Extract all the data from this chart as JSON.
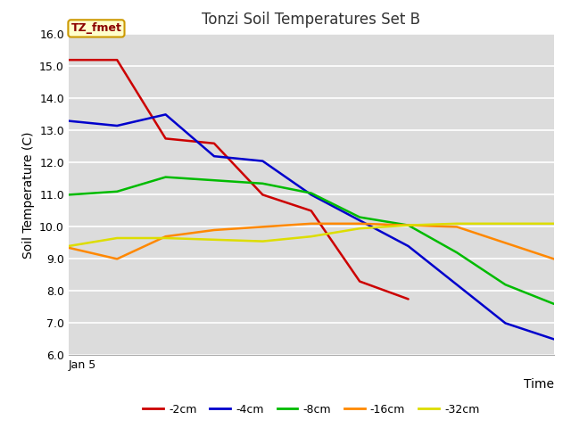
{
  "title": "Tonzi Soil Temperatures Set B",
  "xlabel": "Time",
  "ylabel": "Soil Temperature (C)",
  "ylim": [
    6.0,
    16.0
  ],
  "yticks": [
    6.0,
    7.0,
    8.0,
    9.0,
    10.0,
    11.0,
    12.0,
    13.0,
    14.0,
    15.0,
    16.0
  ],
  "x_label_text": "Jan 5",
  "annotation_label": "TZ_fmet",
  "plot_bg_color": "#dcdcdc",
  "fig_bg_color": "#ffffff",
  "series": {
    "-2cm": {
      "color": "#cc0000",
      "x": [
        0,
        1,
        2,
        3,
        4,
        5,
        6,
        7,
        8
      ],
      "y": [
        15.2,
        15.2,
        12.75,
        12.6,
        11.0,
        10.5,
        8.3,
        7.75,
        null
      ]
    },
    "-4cm": {
      "color": "#0000cc",
      "x": [
        0,
        1,
        2,
        3,
        4,
        5,
        6,
        7,
        8,
        9,
        10
      ],
      "y": [
        13.3,
        13.15,
        13.5,
        12.2,
        12.05,
        11.0,
        10.2,
        9.4,
        8.2,
        7.0,
        6.5
      ]
    },
    "-8cm": {
      "color": "#00bb00",
      "x": [
        0,
        1,
        2,
        3,
        4,
        5,
        6,
        7,
        8,
        9,
        10
      ],
      "y": [
        11.0,
        11.1,
        11.55,
        11.45,
        11.35,
        11.05,
        10.3,
        10.05,
        9.2,
        8.2,
        7.6
      ]
    },
    "-16cm": {
      "color": "#ff8800",
      "x": [
        0,
        1,
        2,
        3,
        4,
        5,
        6,
        7,
        8,
        9,
        10
      ],
      "y": [
        9.35,
        9.0,
        9.7,
        9.9,
        10.0,
        10.1,
        10.1,
        10.05,
        10.0,
        9.5,
        9.0
      ]
    },
    "-32cm": {
      "color": "#dddd00",
      "x": [
        0,
        1,
        2,
        3,
        4,
        5,
        6,
        7,
        8,
        9,
        10
      ],
      "y": [
        9.4,
        9.65,
        9.65,
        9.6,
        9.55,
        9.7,
        9.95,
        10.05,
        10.1,
        10.1,
        10.1
      ]
    }
  },
  "legend_order": [
    "-2cm",
    "-4cm",
    "-8cm",
    "-16cm",
    "-32cm"
  ],
  "title_fontsize": 12,
  "axis_label_fontsize": 10,
  "tick_fontsize": 9
}
